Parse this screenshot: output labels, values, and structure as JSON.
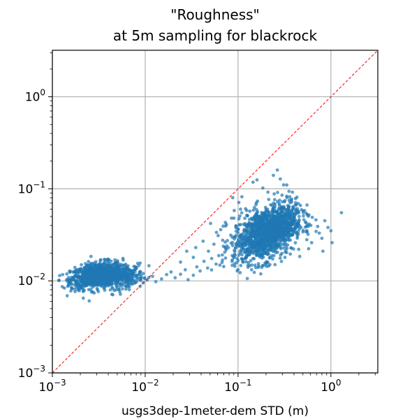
{
  "chart_data": {
    "type": "scatter",
    "title": [
      "\"Roughness\"",
      "at 5m sampling for blackrock"
    ],
    "xlabel": "usgs3dep-1meter-dem STD (m)",
    "ylabel": "",
    "xscale": "log",
    "yscale": "log",
    "xlim": [
      0.001,
      3.2
    ],
    "ylim": [
      0.001,
      3.2
    ],
    "grid": true,
    "xticks": [
      {
        "value": 0.001,
        "base": "10",
        "exp": "−3"
      },
      {
        "value": 0.01,
        "base": "10",
        "exp": "−2"
      },
      {
        "value": 0.1,
        "base": "10",
        "exp": "−1"
      },
      {
        "value": 1,
        "base": "10",
        "exp": "0"
      }
    ],
    "yticks": [
      {
        "value": 0.001,
        "base": "10",
        "exp": "−3"
      },
      {
        "value": 0.01,
        "base": "10",
        "exp": "−2"
      },
      {
        "value": 0.1,
        "base": "10",
        "exp": "−1"
      },
      {
        "value": 1,
        "base": "10",
        "exp": "0"
      }
    ],
    "reference_line": {
      "type": "identity",
      "style": "dashed",
      "color": "#ff0000"
    },
    "point_color": "#1f77b4",
    "clusters": [
      {
        "x_center": 0.003,
        "y_center": 0.0115,
        "x_spread_log10": 0.14,
        "y_spread_log10": 0.07,
        "count": 900
      },
      {
        "x_center": 0.006,
        "y_center": 0.011,
        "x_spread_log10": 0.1,
        "y_spread_log10": 0.06,
        "count": 250
      },
      {
        "x_center": 0.19,
        "y_center": 0.032,
        "x_spread_log10": 0.17,
        "y_spread_log10": 0.15,
        "count": 1100
      },
      {
        "x_center": 0.28,
        "y_center": 0.042,
        "x_spread_log10": 0.12,
        "y_spread_log10": 0.12,
        "count": 350
      }
    ],
    "points": [
      [
        0.0017,
        0.0102
      ],
      [
        0.0016,
        0.0085
      ],
      [
        0.0018,
        0.0096
      ],
      [
        0.0021,
        0.0125
      ],
      [
        0.0095,
        0.0095
      ],
      [
        0.0105,
        0.0102
      ],
      [
        0.0088,
        0.0087
      ],
      [
        0.012,
        0.0112
      ],
      [
        0.013,
        0.0098
      ],
      [
        0.015,
        0.0105
      ],
      [
        0.017,
        0.0117
      ],
      [
        0.019,
        0.0125
      ],
      [
        0.021,
        0.0108
      ],
      [
        0.024,
        0.0118
      ],
      [
        0.027,
        0.0132
      ],
      [
        0.029,
        0.0103
      ],
      [
        0.033,
        0.0115
      ],
      [
        0.036,
        0.0142
      ],
      [
        0.039,
        0.0128
      ],
      [
        0.043,
        0.0163
      ],
      [
        0.047,
        0.0138
      ],
      [
        0.052,
        0.0175
      ],
      [
        0.058,
        0.0152
      ],
      [
        0.062,
        0.0188
      ],
      [
        0.068,
        0.0168
      ],
      [
        0.072,
        0.0205
      ],
      [
        0.035,
        0.023
      ],
      [
        0.042,
        0.027
      ],
      [
        0.048,
        0.021
      ],
      [
        0.055,
        0.025
      ],
      [
        0.061,
        0.031
      ],
      [
        0.033,
        0.018
      ],
      [
        0.024,
        0.016
      ],
      [
        0.028,
        0.021
      ],
      [
        0.065,
        0.036
      ],
      [
        0.075,
        0.041
      ],
      [
        0.091,
        0.058
      ],
      [
        0.102,
        0.071
      ],
      [
        0.085,
        0.048
      ],
      [
        0.11,
        0.082
      ],
      [
        0.145,
        0.118
      ],
      [
        0.16,
        0.125
      ],
      [
        0.185,
        0.102
      ],
      [
        0.21,
        0.092
      ],
      [
        0.245,
        0.088
      ],
      [
        0.28,
        0.075
      ],
      [
        0.265,
        0.16
      ],
      [
        0.285,
        0.128
      ],
      [
        0.24,
        0.14
      ],
      [
        0.335,
        0.11
      ],
      [
        0.355,
        0.075
      ],
      [
        0.385,
        0.092
      ],
      [
        0.43,
        0.081
      ],
      [
        0.47,
        0.066
      ],
      [
        0.52,
        0.058
      ],
      [
        0.58,
        0.052
      ],
      [
        0.63,
        0.049
      ],
      [
        0.69,
        0.046
      ],
      [
        0.72,
        0.039
      ],
      [
        0.75,
        0.033
      ],
      [
        0.8,
        0.029
      ],
      [
        0.86,
        0.045
      ],
      [
        0.93,
        0.038
      ],
      [
        1.0,
        0.035
      ],
      [
        1.3,
        0.055
      ],
      [
        1.03,
        0.026
      ],
      [
        0.82,
        0.021
      ],
      [
        0.62,
        0.026
      ],
      [
        0.45,
        0.022
      ],
      [
        0.32,
        0.018
      ],
      [
        0.25,
        0.015
      ],
      [
        0.18,
        0.014
      ],
      [
        0.14,
        0.0132
      ],
      [
        0.128,
        0.0148
      ],
      [
        0.112,
        0.0162
      ],
      [
        0.098,
        0.0175
      ],
      [
        0.092,
        0.0195
      ],
      [
        0.145,
        0.0175
      ],
      [
        0.11,
        0.021
      ],
      [
        0.35,
        0.03
      ],
      [
        0.5,
        0.034
      ],
      [
        0.55,
        0.028
      ],
      [
        0.42,
        0.058
      ],
      [
        0.31,
        0.062
      ]
    ]
  }
}
